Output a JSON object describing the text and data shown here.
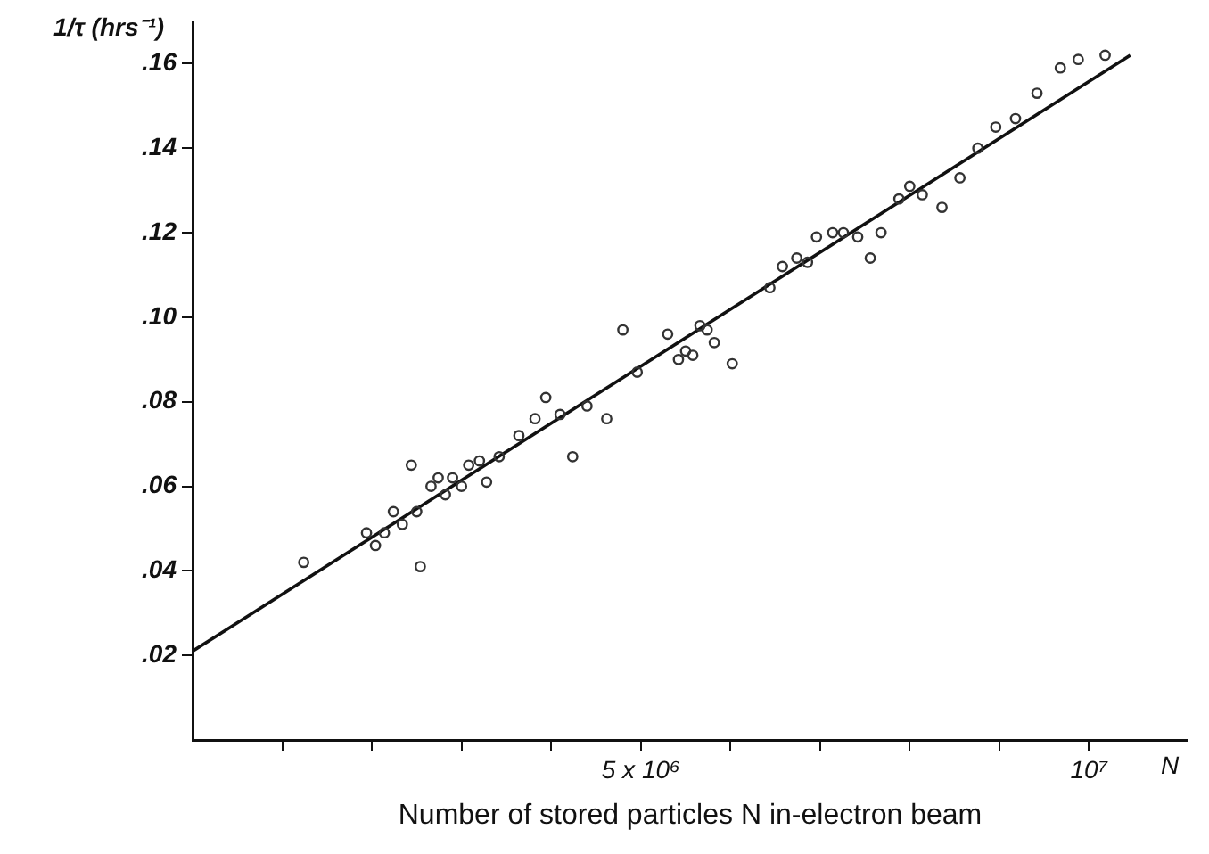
{
  "chart_data": {
    "type": "scatter",
    "xlabel": "Number of stored particles N in-electron beam",
    "ylabel": "1/τ (hrs⁻¹)",
    "annotations": [
      "N"
    ],
    "xlim": [
      0,
      11100000
    ],
    "ylim": [
      0,
      0.17
    ],
    "xticks": [
      {
        "value": 1000000,
        "label": null
      },
      {
        "value": 2000000,
        "label": null
      },
      {
        "value": 3000000,
        "label": null
      },
      {
        "value": 4000000,
        "label": null
      },
      {
        "value": 5000000,
        "label": "5 x 10⁶"
      },
      {
        "value": 6000000,
        "label": null
      },
      {
        "value": 7000000,
        "label": null
      },
      {
        "value": 8000000,
        "label": null
      },
      {
        "value": 9000000,
        "label": null
      },
      {
        "value": 10000000,
        "label": "10⁷"
      }
    ],
    "yticks": [
      {
        "value": 0.02,
        "label": ".02"
      },
      {
        "value": 0.04,
        "label": ".04"
      },
      {
        "value": 0.06,
        "label": ".06"
      },
      {
        "value": 0.08,
        "label": ".08"
      },
      {
        "value": 0.1,
        "label": ".10"
      },
      {
        "value": 0.12,
        "label": ".12"
      },
      {
        "value": 0.14,
        "label": ".14"
      },
      {
        "value": 0.16,
        "label": ".16"
      }
    ],
    "grid": false,
    "legend": false,
    "marker": "circle",
    "series": [
      {
        "color": "#333333",
        "x": [
          1240000,
          1940000,
          2040000,
          2140000,
          2240000,
          2340000,
          2440000,
          2500000,
          2540000,
          2660000,
          2740000,
          2820000,
          2900000,
          3000000,
          3080000,
          3200000,
          3280000,
          3420000,
          3640000,
          3820000,
          3940000,
          4100000,
          4240000,
          4400000,
          4620000,
          4800000,
          4960000,
          5300000,
          5420000,
          5500000,
          5580000,
          5660000,
          5740000,
          5820000,
          6020000,
          6440000,
          6580000,
          6740000,
          6860000,
          6960000,
          7140000,
          7260000,
          7420000,
          7560000,
          7680000,
          7880000,
          8000000,
          8140000,
          8360000,
          8560000,
          8760000,
          8960000,
          9180000,
          9420000,
          9680000,
          9880000,
          10180000
        ],
        "values": [
          0.042,
          0.049,
          0.046,
          0.049,
          0.054,
          0.051,
          0.065,
          0.054,
          0.041,
          0.06,
          0.062,
          0.058,
          0.062,
          0.06,
          0.065,
          0.066,
          0.061,
          0.067,
          0.072,
          0.076,
          0.081,
          0.077,
          0.067,
          0.079,
          0.076,
          0.097,
          0.087,
          0.096,
          0.09,
          0.092,
          0.091,
          0.098,
          0.097,
          0.094,
          0.089,
          0.107,
          0.112,
          0.114,
          0.113,
          0.119,
          0.12,
          0.12,
          0.119,
          0.114,
          0.12,
          0.128,
          0.131,
          0.129,
          0.126,
          0.133,
          0.14,
          0.145,
          0.147,
          0.153,
          0.159,
          0.161,
          0.162
        ]
      },
      {
        "type": "line",
        "color": "#111111",
        "marker": "none",
        "line_style": "solid",
        "x": [
          0,
          10460000
        ],
        "values": [
          0.021,
          0.162
        ]
      }
    ]
  }
}
